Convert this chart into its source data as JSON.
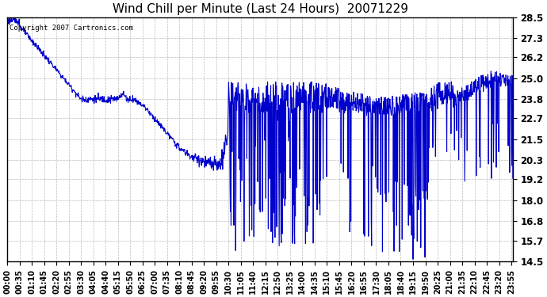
{
  "title": "Wind Chill per Minute (Last 24 Hours)  20071229",
  "copyright_text": "Copyright 2007 Cartronics.com",
  "yticks": [
    14.5,
    15.7,
    16.8,
    18.0,
    19.2,
    20.3,
    21.5,
    22.7,
    23.8,
    25.0,
    26.2,
    27.3,
    28.5
  ],
  "ylim": [
    14.5,
    28.5
  ],
  "line_color": "#0000CC",
  "bg_color": "#FFFFFF",
  "plot_bg_color": "#FFFFFF",
  "grid_color": "#BBBBBB",
  "title_fontsize": 11,
  "xlabel_fontsize": 7,
  "ylabel_fontsize": 8.5
}
